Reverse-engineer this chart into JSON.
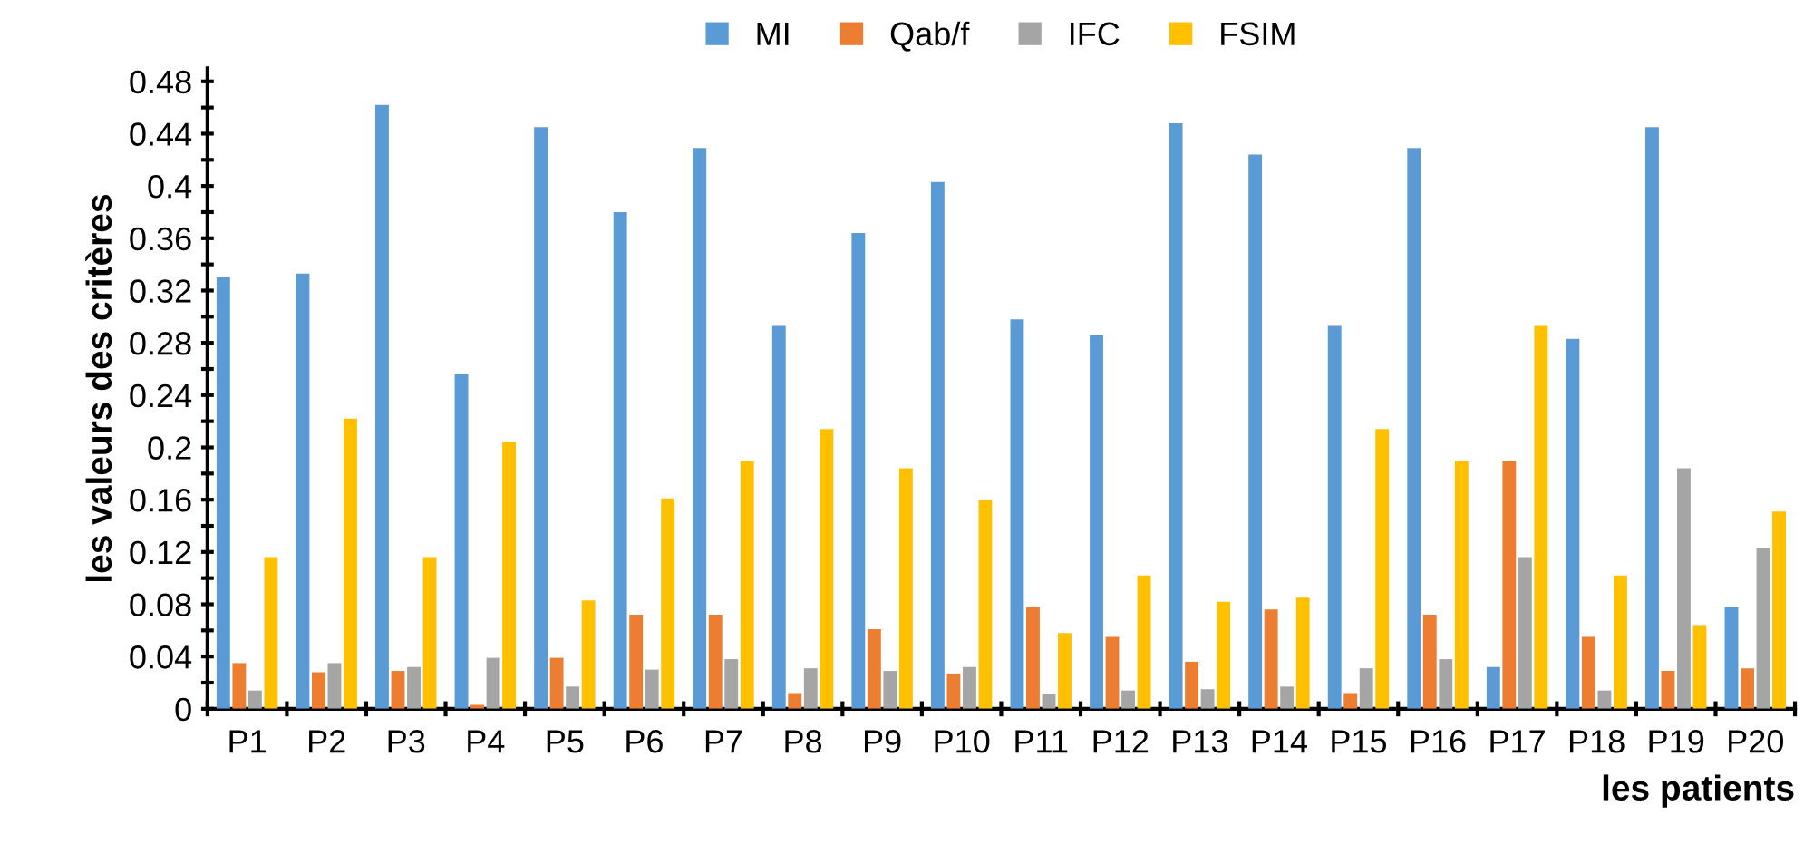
{
  "chart_data": {
    "type": "bar",
    "xlabel": "les patients",
    "ylabel": "les valeurs des critères",
    "categories": [
      "P1",
      "P2",
      "P3",
      "P4",
      "P5",
      "P6",
      "P7",
      "P8",
      "P9",
      "P10",
      "P11",
      "P12",
      "P13",
      "P14",
      "P15",
      "P16",
      "P17",
      "P18",
      "P19",
      "P20"
    ],
    "series": [
      {
        "name": "MI",
        "color": "#5b9bd5",
        "values": [
          0.33,
          0.333,
          0.462,
          0.256,
          0.445,
          0.38,
          0.429,
          0.293,
          0.364,
          0.403,
          0.298,
          0.286,
          0.448,
          0.424,
          0.293,
          0.429,
          0.032,
          0.283,
          0.445,
          0.078
        ]
      },
      {
        "name": "Qab/f",
        "color": "#ed7d31",
        "values": [
          0.035,
          0.028,
          0.029,
          0.003,
          0.039,
          0.072,
          0.072,
          0.012,
          0.061,
          0.027,
          0.078,
          0.055,
          0.036,
          0.076,
          0.012,
          0.072,
          0.19,
          0.055,
          0.029,
          0.031
        ]
      },
      {
        "name": "IFC",
        "color": "#a5a5a5",
        "values": [
          0.014,
          0.035,
          0.032,
          0.039,
          0.017,
          0.03,
          0.038,
          0.031,
          0.029,
          0.032,
          0.011,
          0.014,
          0.015,
          0.017,
          0.031,
          0.038,
          0.116,
          0.014,
          0.184,
          0.123
        ]
      },
      {
        "name": "FSIM",
        "color": "#ffc000",
        "values": [
          0.116,
          0.222,
          0.116,
          0.204,
          0.083,
          0.161,
          0.19,
          0.214,
          0.184,
          0.16,
          0.058,
          0.102,
          0.082,
          0.085,
          0.214,
          0.19,
          0.293,
          0.102,
          0.064,
          0.151
        ]
      }
    ],
    "ylim": [
      0,
      0.49
    ],
    "yticks": [
      0,
      {
        "value": 0.02,
        "label": null
      },
      0.04,
      {
        "value": 0.06,
        "label": null
      },
      0.08,
      {
        "value": 0.1,
        "label": null
      },
      0.12,
      {
        "value": 0.14,
        "label": null
      },
      0.16,
      {
        "value": 0.18,
        "label": null
      },
      0.2,
      {
        "value": 0.22,
        "label": null
      },
      0.24,
      {
        "value": 0.26,
        "label": null
      },
      0.28,
      {
        "value": 0.3,
        "label": null
      },
      0.32,
      {
        "value": 0.34,
        "label": null
      },
      0.36,
      {
        "value": 0.38,
        "label": null
      },
      0.4,
      {
        "value": 0.42,
        "label": null
      },
      0.44,
      {
        "value": 0.46,
        "label": null
      },
      0.48
    ],
    "grid": false,
    "legend": "top"
  }
}
